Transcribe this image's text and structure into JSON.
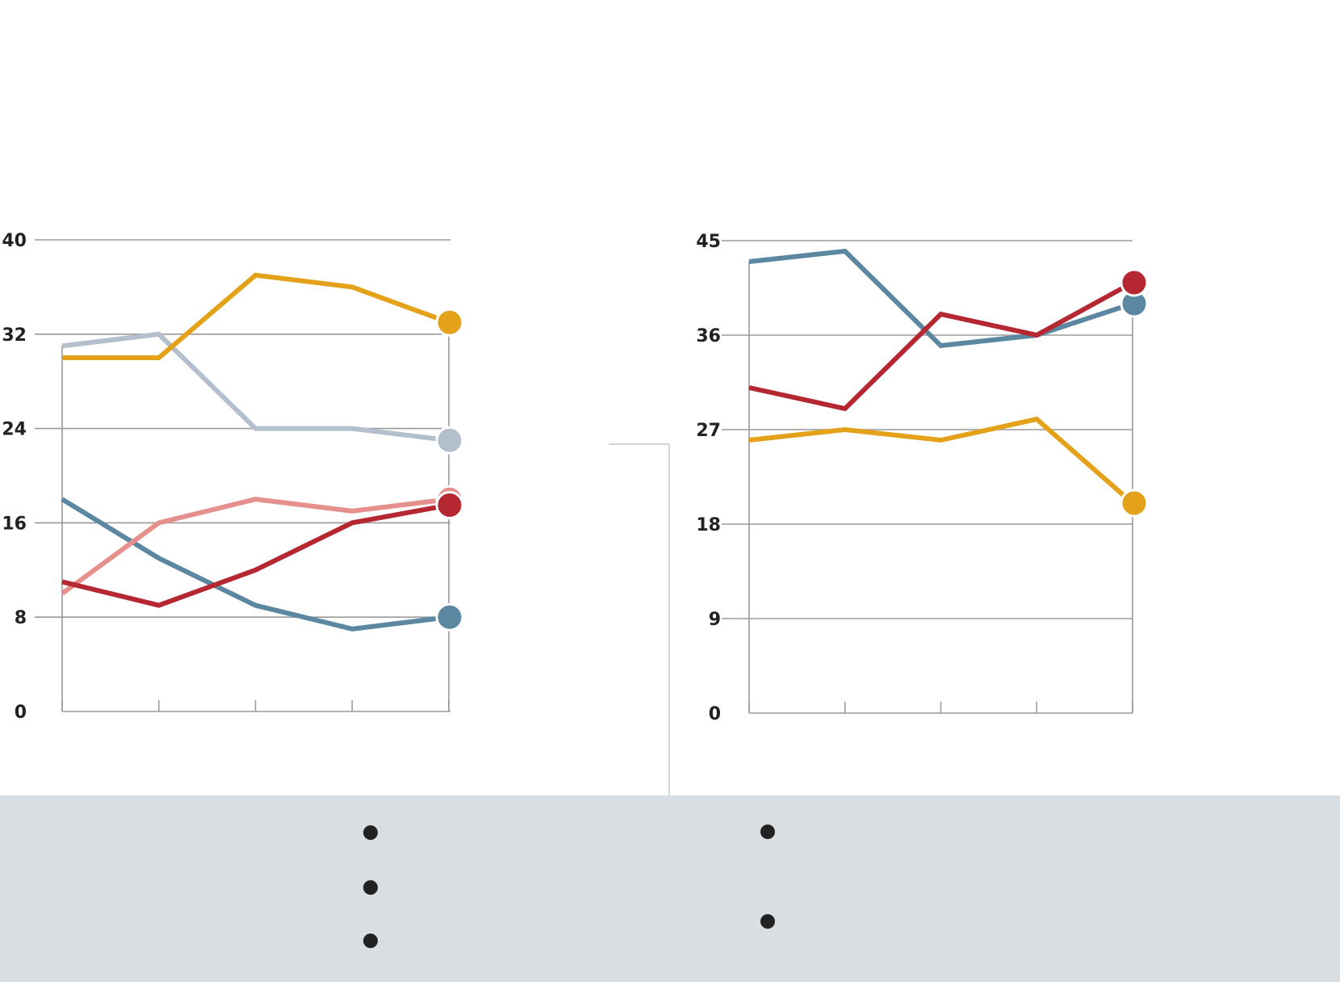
{
  "colors": {
    "gold": "#e3a21a",
    "steel_blue": "#5b87a0",
    "light_gray_blue": "#b3bfcc",
    "salmon": "#e5908d",
    "crimson": "#b52832",
    "grid": "#9a9a9a",
    "footer_bg": "#d9dee3",
    "bullet": "#222222",
    "divider": "#d3d3d3"
  },
  "chart_data": [
    {
      "type": "line",
      "title": "",
      "xlabel": "",
      "ylabel": "",
      "x": [
        1,
        2,
        3,
        4,
        5
      ],
      "ylim": [
        0,
        40
      ],
      "yticks": [
        "0",
        "8",
        "16",
        "24",
        "32",
        "40"
      ],
      "grid": true,
      "series": [
        {
          "color": "#b3bfcc",
          "values": [
            31,
            32,
            24,
            24,
            23
          ]
        },
        {
          "color": "#e3a21a",
          "values": [
            30,
            30,
            37,
            36,
            33
          ]
        },
        {
          "color": "#5b87a0",
          "values": [
            18,
            13,
            9,
            7,
            8
          ]
        },
        {
          "color": "#e5908d",
          "values": [
            10,
            16,
            18,
            17,
            18
          ]
        },
        {
          "color": "#b52832",
          "values": [
            11,
            9,
            12,
            16,
            17.5
          ]
        }
      ]
    },
    {
      "type": "line",
      "title": "",
      "xlabel": "",
      "ylabel": "",
      "x": [
        1,
        2,
        3,
        4,
        5
      ],
      "ylim": [
        0,
        45
      ],
      "yticks": [
        "0",
        "9",
        "18",
        "27",
        "36",
        "45"
      ],
      "grid": true,
      "series": [
        {
          "color": "#5b87a0",
          "values": [
            43,
            44,
            35,
            36,
            39
          ]
        },
        {
          "color": "#e3a21a",
          "values": [
            26,
            27,
            26,
            28,
            20
          ]
        },
        {
          "color": "#b52832",
          "values": [
            31,
            29,
            38,
            36,
            41
          ]
        }
      ]
    }
  ],
  "legend": {
    "left_bullets": 3,
    "right_bullets": 2
  }
}
